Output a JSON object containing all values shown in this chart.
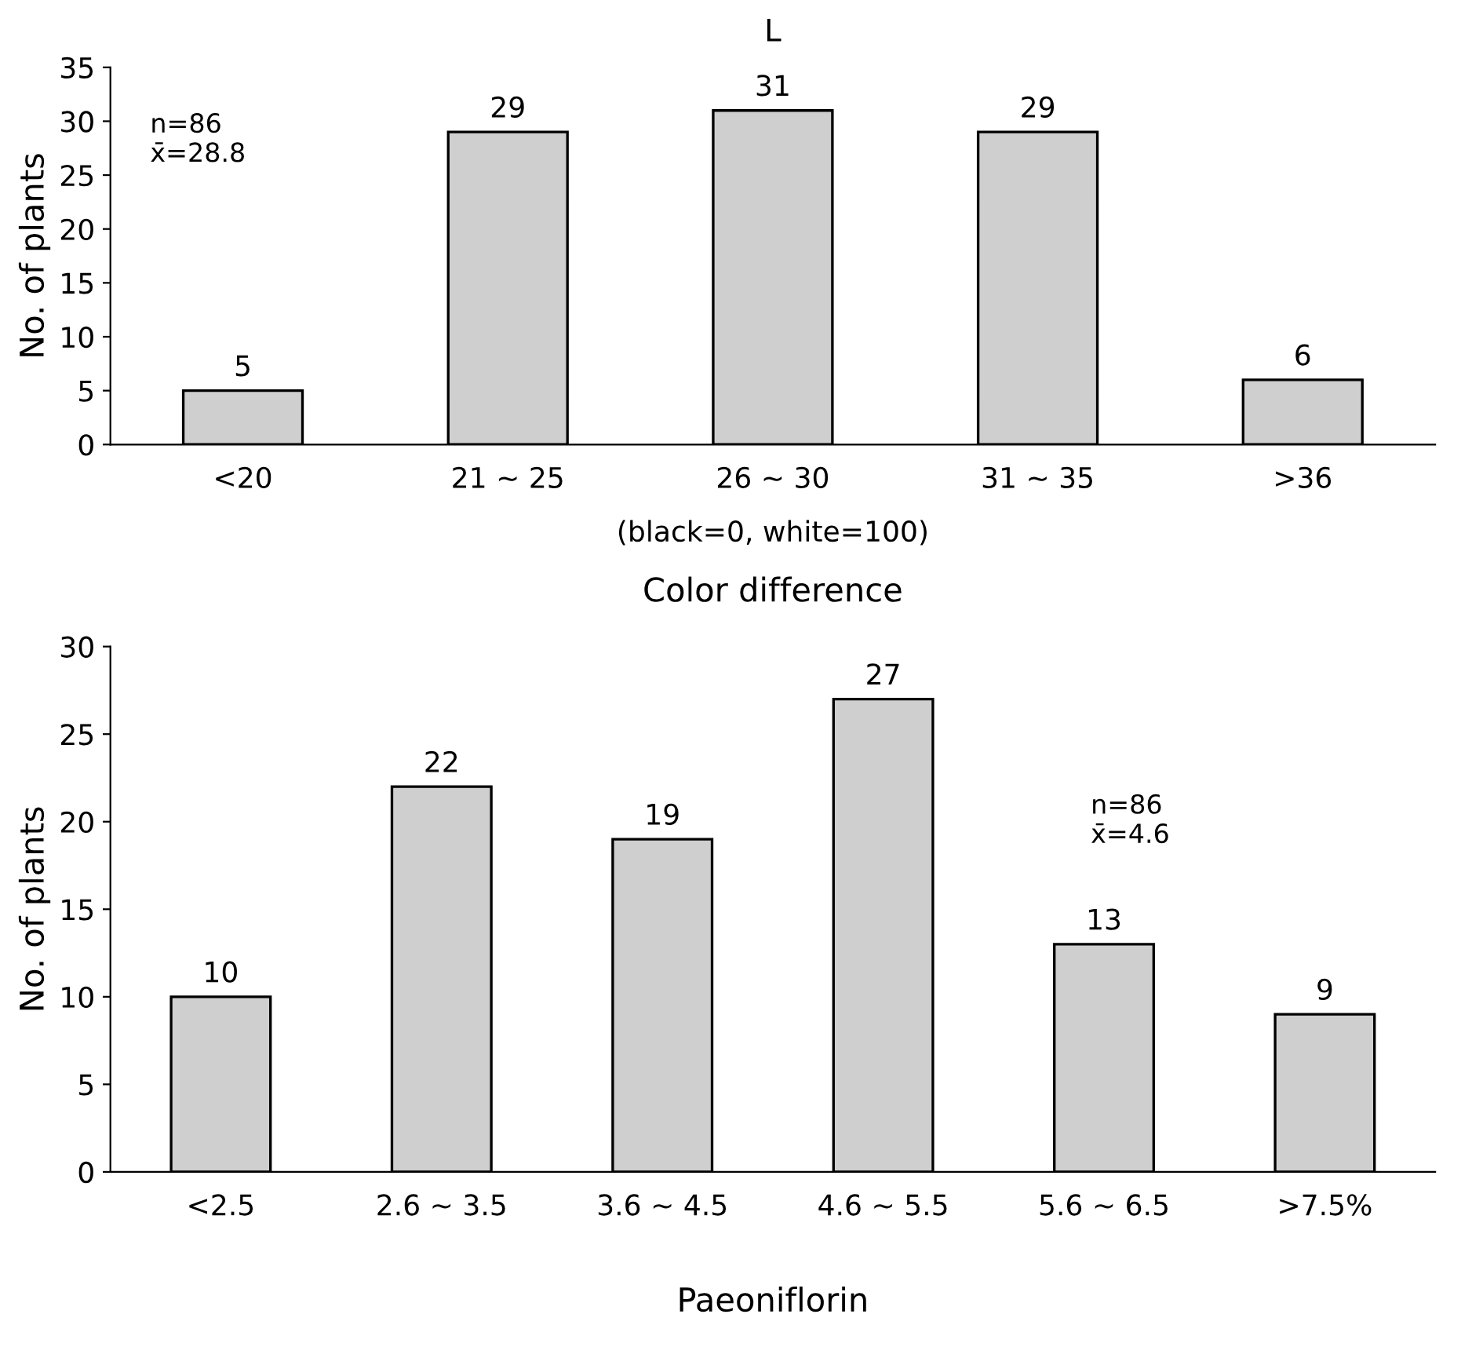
{
  "chart_data": [
    {
      "type": "bar",
      "title": "L",
      "xlabel": "Color difference",
      "ylabel": "No. of plants",
      "categories": [
        "<20",
        "21 ~ 25",
        "26 ~ 30",
        "31 ~ 35",
        ">36"
      ],
      "values": [
        5,
        29,
        31,
        29,
        6
      ],
      "color": "#cfcfcf",
      "ylim": [
        0,
        35
      ],
      "yticks": [
        0,
        5,
        10,
        15,
        20,
        25,
        30,
        35
      ],
      "data_labels": true,
      "grid": false,
      "legend": false,
      "annotations": [
        "n=86\nx̄=28.8",
        "(black=0, white=100)"
      ]
    },
    {
      "type": "bar",
      "xlabel": "Paeoniflorin",
      "ylabel": "No. of plants",
      "categories": [
        "<2.5",
        "2.6 ~ 3.5",
        "3.6 ~ 4.5",
        "4.6 ~ 5.5",
        "5.6 ~ 6.5",
        ">7.5%"
      ],
      "values": [
        10,
        22,
        19,
        27,
        13,
        9
      ],
      "color": "#cfcfcf",
      "ylim": [
        0,
        30
      ],
      "yticks": [
        0,
        5,
        10,
        15,
        20,
        25,
        30
      ],
      "data_labels": true,
      "grid": false,
      "legend": false,
      "annotations": [
        "n=86\nx̄=4.6"
      ]
    }
  ]
}
